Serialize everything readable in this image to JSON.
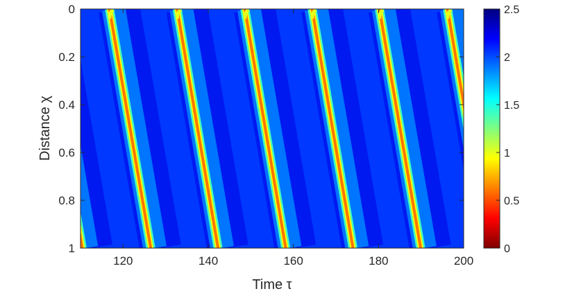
{
  "chart_data": {
    "type": "heatmap",
    "xlabel": "Time τ",
    "ylabel": "Distance χ",
    "xlim": [
      110,
      200
    ],
    "ylim": [
      0,
      1
    ],
    "y_reversed": true,
    "x_ticks": [
      120,
      140,
      160,
      180,
      200
    ],
    "x_tick_labels": [
      "120",
      "140",
      "160",
      "180",
      "200"
    ],
    "y_ticks": [
      0,
      0.2,
      0.4,
      0.6,
      0.8,
      1
    ],
    "y_tick_labels": [
      "0",
      "0.2",
      "0.4",
      "0.6",
      "0.8",
      "1"
    ],
    "colorbar": {
      "colormap": "jet",
      "range": [
        0,
        2.5
      ],
      "ticks": [
        0,
        0.5,
        1,
        1.5,
        2,
        2.5
      ],
      "tick_labels": [
        "0",
        "0.5",
        "1",
        "1.5",
        "2",
        "2.5"
      ]
    },
    "background_value": 2.05,
    "bands": [
      {
        "start_time": 116.8,
        "end_time": 126.5
      },
      {
        "start_time": 132.7,
        "end_time": 142.3
      },
      {
        "start_time": 148.6,
        "end_time": 158.2
      },
      {
        "start_time": 164.4,
        "end_time": 174.0
      },
      {
        "start_time": 180.2,
        "end_time": 189.9
      },
      {
        "start_time": 196.2,
        "end_time": 205.8
      },
      {
        "start_time": 100.7,
        "end_time": 110.4
      }
    ],
    "band_min_value": 0.6,
    "grid": false
  }
}
